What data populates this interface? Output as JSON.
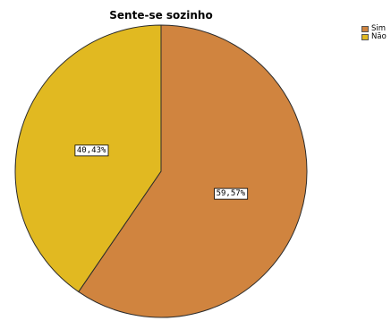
{
  "chart_data": {
    "type": "pie",
    "title": "Sente-se sozinho",
    "categories": [
      "Sim",
      "Não"
    ],
    "values": [
      59.57,
      40.43
    ],
    "labels": [
      "59,57%",
      "40,43%"
    ],
    "colors": [
      "#D0843F",
      "#E1B921"
    ],
    "start": "top",
    "direction": "clockwise",
    "legend": "top-right"
  }
}
